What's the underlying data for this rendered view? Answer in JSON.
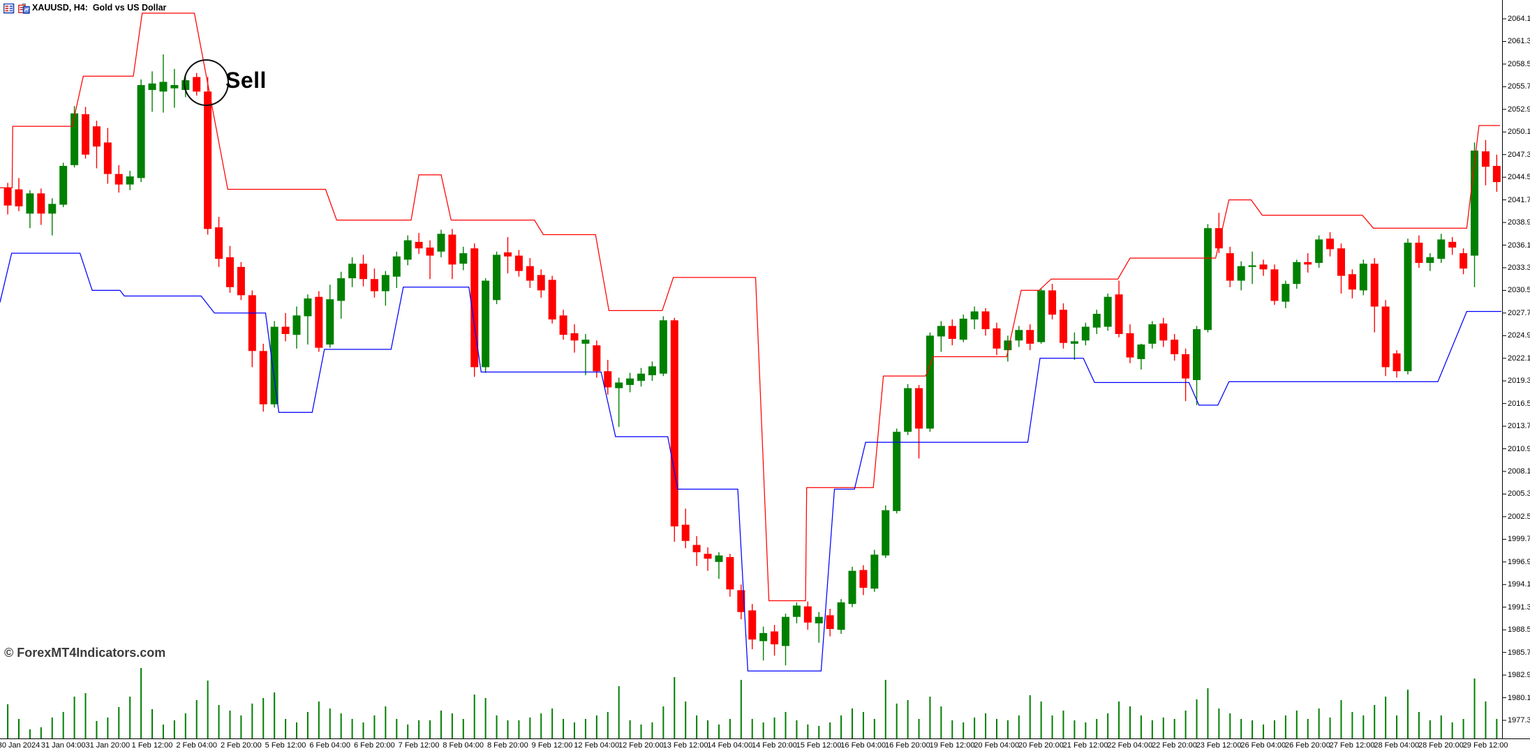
{
  "window": {
    "title": "XAUUSD, H4:  Gold vs US Dollar",
    "icons": [
      {
        "name": "quotes-grid-icon"
      },
      {
        "name": "new-chart-icon"
      }
    ]
  },
  "annotations": {
    "sell": {
      "label": "Sell"
    },
    "watermark": {
      "text": "© ForexMT4Indicators.com"
    }
  },
  "colors": {
    "background": "#ffffff",
    "bull": "#008000",
    "bear": "#ff0000",
    "upper_line": "#ff0000",
    "lower_line": "#0000ff",
    "volume": "#008000",
    "axis": "#000000",
    "watermark_text": "#3c3c3c"
  },
  "chart_data": {
    "type": "candlestick",
    "title": "XAUUSD, H4: Gold vs US Dollar",
    "symbol": "XAUUSD",
    "timeframe": "H4",
    "description": "Gold vs US Dollar",
    "ylim": [
      1977.3,
      2064.1
    ],
    "price_step": 2.8,
    "grid": false,
    "price_axis_labels": [
      "2064.10",
      "2061.30",
      "2058.50",
      "2055.70",
      "2052.90",
      "2050.10",
      "2047.30",
      "2044.50",
      "2041.70",
      "2038.90",
      "2036.10",
      "2033.30",
      "2030.50",
      "2027.70",
      "2024.90",
      "2022.10",
      "2019.30",
      "2016.50",
      "2013.70",
      "2010.90",
      "2008.10",
      "2005.30",
      "2002.50",
      "1999.70",
      "1996.90",
      "1994.10",
      "1991.30",
      "1988.50",
      "1985.70",
      "1982.90",
      "1980.10",
      "1977.30"
    ],
    "time_axis_labels": [
      "30 Jan 2024",
      "31 Jan 04:00",
      "31 Jan 20:00",
      "1 Feb 12:00",
      "2 Feb 04:00",
      "2 Feb 20:00",
      "5 Feb 12:00",
      "6 Feb 04:00",
      "6 Feb 20:00",
      "7 Feb 12:00",
      "8 Feb 04:00",
      "8 Feb 20:00",
      "9 Feb 12:00",
      "12 Feb 04:00",
      "12 Feb 20:00",
      "13 Feb 12:00",
      "14 Feb 04:00",
      "14 Feb 20:00",
      "15 Feb 12:00",
      "16 Feb 04:00",
      "16 Feb 20:00",
      "19 Feb 12:00",
      "20 Feb 04:00",
      "20 Feb 20:00",
      "21 Feb 12:00",
      "22 Feb 04:00",
      "22 Feb 20:00",
      "23 Feb 12:00",
      "26 Feb 04:00",
      "26 Feb 20:00",
      "27 Feb 12:00",
      "28 Feb 04:00",
      "28 Feb 20:00",
      "29 Feb 12:00"
    ],
    "candles_ohlc": [
      [
        2043.2,
        2043.8,
        2039.9,
        2041.0
      ],
      [
        2043.0,
        2044.4,
        2040.3,
        2040.9
      ],
      [
        2040.0,
        2042.9,
        2038.2,
        2042.5
      ],
      [
        2042.5,
        2043.1,
        2038.6,
        2040.0
      ],
      [
        2040.0,
        2041.9,
        2037.3,
        2041.2
      ],
      [
        2041.1,
        2046.3,
        2040.8,
        2045.9
      ],
      [
        2046.0,
        2053.3,
        2045.7,
        2052.4
      ],
      [
        2052.3,
        2053.2,
        2046.8,
        2047.3
      ],
      [
        2050.8,
        2051.5,
        2045.6,
        2048.3
      ],
      [
        2048.8,
        2050.6,
        2043.7,
        2044.9
      ],
      [
        2044.9,
        2046.0,
        2042.6,
        2043.6
      ],
      [
        2043.6,
        2045.3,
        2042.9,
        2044.6
      ],
      [
        2044.4,
        2056.6,
        2043.9,
        2055.9
      ],
      [
        2055.3,
        2057.6,
        2052.6,
        2056.1
      ],
      [
        2055.1,
        2059.7,
        2052.5,
        2056.3
      ],
      [
        2055.5,
        2057.9,
        2053.1,
        2055.9
      ],
      [
        2055.3,
        2057.1,
        2054.4,
        2056.5
      ],
      [
        2056.9,
        2057.4,
        2054.6,
        2055.1
      ],
      [
        2055.1,
        2056.9,
        2037.4,
        2038.1
      ],
      [
        2038.3,
        2039.6,
        2033.4,
        2034.4
      ],
      [
        2034.6,
        2036.0,
        2030.2,
        2030.9
      ],
      [
        2033.4,
        2034.0,
        2029.3,
        2029.9
      ],
      [
        2029.9,
        2030.5,
        2021.0,
        2023.0
      ],
      [
        2023.0,
        2023.9,
        2015.5,
        2016.4
      ],
      [
        2016.4,
        2026.7,
        2016.0,
        2026.0
      ],
      [
        2026.0,
        2027.7,
        2024.2,
        2025.1
      ],
      [
        2025.0,
        2028.5,
        2023.3,
        2027.4
      ],
      [
        2027.3,
        2030.0,
        2023.8,
        2029.5
      ],
      [
        2029.7,
        2030.4,
        2022.9,
        2023.4
      ],
      [
        2023.8,
        2031.2,
        2023.4,
        2029.4
      ],
      [
        2029.2,
        2032.8,
        2027.0,
        2032.0
      ],
      [
        2032.0,
        2034.6,
        2030.9,
        2033.8
      ],
      [
        2033.8,
        2034.9,
        2031.0,
        2031.9
      ],
      [
        2031.9,
        2033.2,
        2029.6,
        2030.4
      ],
      [
        2030.4,
        2032.9,
        2028.6,
        2032.4
      ],
      [
        2032.2,
        2035.3,
        2030.8,
        2034.7
      ],
      [
        2034.3,
        2037.3,
        2033.6,
        2036.7
      ],
      [
        2036.5,
        2037.6,
        2035.0,
        2035.7
      ],
      [
        2035.8,
        2036.7,
        2031.9,
        2034.8
      ],
      [
        2035.3,
        2038.0,
        2034.6,
        2037.5
      ],
      [
        2037.4,
        2038.1,
        2031.9,
        2033.7
      ],
      [
        2033.8,
        2035.9,
        2033.0,
        2035.1
      ],
      [
        2035.7,
        2036.3,
        2019.8,
        2021.0
      ],
      [
        2021.0,
        2032.0,
        2020.3,
        2031.7
      ],
      [
        2029.3,
        2035.3,
        2028.8,
        2034.9
      ],
      [
        2035.2,
        2037.1,
        2032.6,
        2034.7
      ],
      [
        2034.8,
        2035.5,
        2032.2,
        2032.9
      ],
      [
        2033.5,
        2034.5,
        2030.8,
        2031.7
      ],
      [
        2032.4,
        2033.1,
        2029.6,
        2030.5
      ],
      [
        2031.8,
        2032.3,
        2026.4,
        2026.9
      ],
      [
        2027.4,
        2028.1,
        2024.4,
        2025.0
      ],
      [
        2025.2,
        2026.3,
        2022.8,
        2024.3
      ],
      [
        2023.9,
        2025.1,
        2020.0,
        2024.4
      ],
      [
        2023.7,
        2024.3,
        2019.7,
        2020.5
      ],
      [
        2020.5,
        2021.9,
        2017.6,
        2018.5
      ],
      [
        2018.4,
        2019.7,
        2013.6,
        2019.1
      ],
      [
        2018.8,
        2020.3,
        2017.9,
        2019.6
      ],
      [
        2019.3,
        2020.9,
        2018.6,
        2020.2
      ],
      [
        2020.0,
        2021.7,
        2019.3,
        2021.1
      ],
      [
        2020.2,
        2027.3,
        2019.9,
        2026.8
      ],
      [
        2026.8,
        2027.1,
        1999.4,
        2001.3
      ],
      [
        2001.5,
        2003.5,
        1998.6,
        1999.5
      ],
      [
        1999.0,
        2000.1,
        1996.4,
        1998.1
      ],
      [
        1997.9,
        1998.7,
        1995.8,
        1997.3
      ],
      [
        1996.9,
        1998.1,
        1994.8,
        1997.7
      ],
      [
        1997.5,
        1997.9,
        1992.6,
        1993.5
      ],
      [
        1993.4,
        1994.1,
        1989.8,
        1990.7
      ],
      [
        1990.9,
        1991.7,
        1986.1,
        1987.3
      ],
      [
        1987.1,
        1988.9,
        1984.7,
        1988.1
      ],
      [
        1988.3,
        1989.1,
        1985.3,
        1986.7
      ],
      [
        1986.5,
        1990.5,
        1984.1,
        1990.1
      ],
      [
        1990.1,
        1991.9,
        1989.3,
        1991.5
      ],
      [
        1991.4,
        1992.0,
        1988.5,
        1989.4
      ],
      [
        1989.3,
        1990.7,
        1986.9,
        1990.1
      ],
      [
        1990.3,
        1991.1,
        1987.7,
        1988.6
      ],
      [
        1988.5,
        1992.3,
        1988.0,
        1991.9
      ],
      [
        1991.7,
        1996.3,
        1991.3,
        1995.8
      ],
      [
        1995.9,
        1996.5,
        1992.8,
        1993.7
      ],
      [
        1993.6,
        1998.4,
        1993.2,
        1997.8
      ],
      [
        1997.7,
        2003.9,
        1997.4,
        2003.3
      ],
      [
        2003.2,
        2013.4,
        2002.9,
        2013.0
      ],
      [
        2013.0,
        2018.9,
        2012.6,
        2018.4
      ],
      [
        2018.4,
        2018.8,
        2009.7,
        2013.4
      ],
      [
        2013.4,
        2025.3,
        2013.0,
        2024.9
      ],
      [
        2024.8,
        2026.7,
        2022.9,
        2026.1
      ],
      [
        2026.1,
        2026.9,
        2023.7,
        2024.5
      ],
      [
        2024.4,
        2027.5,
        2024.1,
        2027.0
      ],
      [
        2026.9,
        2028.5,
        2025.7,
        2027.9
      ],
      [
        2027.9,
        2028.3,
        2024.9,
        2025.7
      ],
      [
        2025.8,
        2026.5,
        2022.5,
        2023.3
      ],
      [
        2023.1,
        2024.9,
        2021.7,
        2024.3
      ],
      [
        2024.3,
        2026.1,
        2023.5,
        2025.6
      ],
      [
        2025.6,
        2026.3,
        2023.1,
        2023.9
      ],
      [
        2024.1,
        2030.7,
        2023.9,
        2030.5
      ],
      [
        2030.5,
        2031.3,
        2026.9,
        2027.5
      ],
      [
        2028.1,
        2028.9,
        2023.3,
        2024.0
      ],
      [
        2023.9,
        2025.3,
        2021.9,
        2024.2
      ],
      [
        2024.3,
        2026.5,
        2023.7,
        2026.0
      ],
      [
        2025.9,
        2028.1,
        2025.1,
        2027.6
      ],
      [
        2026.0,
        2030.1,
        2025.5,
        2029.7
      ],
      [
        2030.0,
        2031.7,
        2024.7,
        2025.1
      ],
      [
        2025.2,
        2026.3,
        2021.5,
        2022.2
      ],
      [
        2022.0,
        2023.9,
        2020.7,
        2023.8
      ],
      [
        2023.9,
        2026.7,
        2023.3,
        2026.3
      ],
      [
        2026.4,
        2027.1,
        2023.5,
        2024.3
      ],
      [
        2024.4,
        2025.1,
        2021.8,
        2022.6
      ],
      [
        2022.6,
        2023.3,
        2016.8,
        2019.6
      ],
      [
        2019.4,
        2026.1,
        2016.3,
        2025.7
      ],
      [
        2025.6,
        2038.7,
        2025.3,
        2038.2
      ],
      [
        2038.2,
        2040.1,
        2035.1,
        2035.7
      ],
      [
        2035.1,
        2035.9,
        2030.9,
        2031.7
      ],
      [
        2031.7,
        2034.1,
        2030.5,
        2033.5
      ],
      [
        2033.4,
        2035.3,
        2031.3,
        2033.6
      ],
      [
        2033.7,
        2034.3,
        2032.3,
        2033.1
      ],
      [
        2033.1,
        2033.7,
        2028.7,
        2029.2
      ],
      [
        2029.1,
        2031.7,
        2028.3,
        2031.3
      ],
      [
        2031.3,
        2034.3,
        2030.7,
        2034.0
      ],
      [
        2034.0,
        2035.1,
        2032.7,
        2033.7
      ],
      [
        2033.9,
        2037.3,
        2033.3,
        2036.8
      ],
      [
        2036.9,
        2037.7,
        2034.7,
        2035.6
      ],
      [
        2035.7,
        2036.3,
        2030.1,
        2032.3
      ],
      [
        2032.5,
        2033.1,
        2029.5,
        2030.6
      ],
      [
        2030.5,
        2034.3,
        2029.9,
        2033.8
      ],
      [
        2033.8,
        2034.5,
        2025.3,
        2028.5
      ],
      [
        2028.5,
        2029.3,
        2019.9,
        2021.0
      ],
      [
        2022.7,
        2023.1,
        2019.7,
        2020.5
      ],
      [
        2020.5,
        2036.9,
        2020.1,
        2036.4
      ],
      [
        2036.4,
        2037.3,
        2033.3,
        2033.9
      ],
      [
        2033.9,
        2035.1,
        2032.9,
        2034.6
      ],
      [
        2034.4,
        2037.5,
        2033.9,
        2036.8
      ],
      [
        2036.5,
        2037.1,
        2034.9,
        2035.8
      ],
      [
        2035.1,
        2035.7,
        2032.5,
        2033.2
      ],
      [
        2034.8,
        2048.8,
        2030.9,
        2047.8
      ],
      [
        2047.7,
        2049.1,
        2043.5,
        2045.8
      ],
      [
        2045.9,
        2047.3,
        2042.7,
        2043.9
      ]
    ],
    "volume": [
      49,
      28,
      13,
      16,
      30,
      38,
      60,
      65,
      25,
      30,
      45,
      60,
      101,
      42,
      20,
      26,
      36,
      55,
      83,
      48,
      40,
      33,
      50,
      58,
      66,
      28,
      23,
      38,
      53,
      43,
      36,
      28,
      23,
      33,
      46,
      28,
      20,
      26,
      26,
      40,
      36,
      28,
      63,
      58,
      33,
      26,
      26,
      30,
      36,
      43,
      28,
      23,
      28,
      33,
      38,
      75,
      26,
      20,
      23,
      46,
      88,
      53,
      33,
      26,
      20,
      28,
      84,
      28,
      23,
      30,
      38,
      26,
      20,
      18,
      23,
      33,
      43,
      38,
      28,
      84,
      50,
      55,
      28,
      60,
      46,
      26,
      23,
      30,
      36,
      28,
      26,
      33,
      62,
      53,
      33,
      40,
      26,
      23,
      28,
      36,
      53,
      46,
      33,
      26,
      30,
      28,
      40,
      56,
      72,
      43,
      36,
      28,
      26,
      20,
      26,
      33,
      40,
      28,
      43,
      30,
      55,
      38,
      33,
      48,
      60,
      33,
      70,
      38,
      26,
      33,
      23,
      28,
      86,
      53,
      28
    ],
    "indicator_lines": {
      "upper_red": [
        [
          -0.8,
          2043.2
        ],
        [
          0.4,
          2043.2
        ],
        [
          0.45,
          2050.8
        ],
        [
          5.8,
          2050.8
        ],
        [
          6.8,
          2057.0
        ],
        [
          11.3,
          2057.0
        ],
        [
          12.1,
          2064.8
        ],
        [
          16.8,
          2064.8
        ],
        [
          19.8,
          2043.0
        ],
        [
          28.6,
          2043.0
        ],
        [
          29.6,
          2039.2
        ],
        [
          36.3,
          2039.2
        ],
        [
          37.0,
          2044.8
        ],
        [
          39.0,
          2044.8
        ],
        [
          39.9,
          2039.2
        ],
        [
          47.4,
          2039.2
        ],
        [
          48.2,
          2037.4
        ],
        [
          52.9,
          2037.4
        ],
        [
          54.1,
          2028.0
        ],
        [
          58.9,
          2028.0
        ],
        [
          59.9,
          2032.1
        ],
        [
          67.3,
          2032.1
        ],
        [
          68.5,
          1992.1
        ],
        [
          71.8,
          1992.1
        ],
        [
          71.9,
          2006.1
        ],
        [
          77.9,
          2006.1
        ],
        [
          78.8,
          2019.9
        ],
        [
          82.6,
          2019.9
        ],
        [
          83.3,
          2022.3
        ],
        [
          89.9,
          2022.3
        ],
        [
          91.2,
          2030.5
        ],
        [
          92.8,
          2030.5
        ],
        [
          93.9,
          2031.9
        ],
        [
          99.9,
          2031.9
        ],
        [
          101.0,
          2034.5
        ],
        [
          108.7,
          2034.5
        ],
        [
          109.9,
          2041.7
        ],
        [
          111.9,
          2041.7
        ],
        [
          112.9,
          2039.8
        ],
        [
          121.9,
          2039.8
        ],
        [
          122.9,
          2038.2
        ],
        [
          131.3,
          2038.2
        ],
        [
          132.4,
          2050.9
        ],
        [
          134.3,
          2050.9
        ]
      ],
      "lower_blue": [
        [
          -0.7,
          2029.0
        ],
        [
          0.35,
          2035.1
        ],
        [
          6.5,
          2035.1
        ],
        [
          7.6,
          2030.5
        ],
        [
          10.1,
          2030.5
        ],
        [
          10.5,
          2029.8
        ],
        [
          17.4,
          2029.8
        ],
        [
          18.6,
          2027.7
        ],
        [
          23.2,
          2027.7
        ],
        [
          24.4,
          2015.4
        ],
        [
          27.4,
          2015.4
        ],
        [
          28.5,
          2023.2
        ],
        [
          34.5,
          2023.2
        ],
        [
          35.6,
          2030.9
        ],
        [
          41.5,
          2030.9
        ],
        [
          42.6,
          2020.4
        ],
        [
          53.4,
          2020.4
        ],
        [
          54.7,
          2012.4
        ],
        [
          59.4,
          2012.4
        ],
        [
          60.3,
          2005.9
        ],
        [
          65.7,
          2005.9
        ],
        [
          66.6,
          1983.4
        ],
        [
          73.2,
          1983.4
        ],
        [
          74.4,
          2005.9
        ],
        [
          76.2,
          2005.9
        ],
        [
          77.2,
          2011.7
        ],
        [
          91.8,
          2011.7
        ],
        [
          92.9,
          2022.1
        ],
        [
          96.8,
          2022.1
        ],
        [
          97.8,
          2019.1
        ],
        [
          106.3,
          2019.1
        ],
        [
          107.2,
          2016.3
        ],
        [
          108.9,
          2016.3
        ],
        [
          109.9,
          2019.2
        ],
        [
          128.7,
          2019.2
        ],
        [
          131.3,
          2027.9
        ],
        [
          136.6,
          2027.9
        ]
      ]
    },
    "chart_annotations": [
      {
        "type": "sell-signal",
        "label": "Sell",
        "candle_index": 17,
        "price": 2056.0
      }
    ]
  }
}
